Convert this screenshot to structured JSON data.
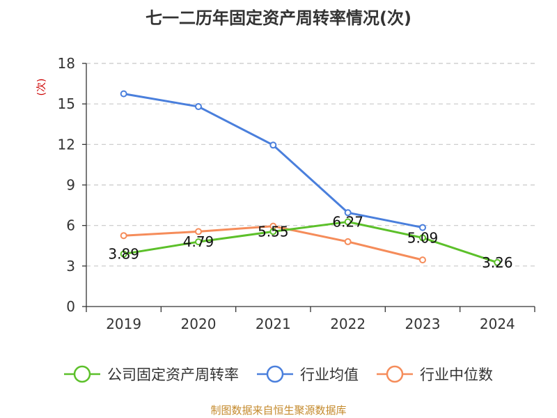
{
  "chart_data": {
    "type": "line",
    "title": "七一二历年固定资产周转率情况(次)",
    "ylabel": "(次)",
    "xlabel": "",
    "categories": [
      "2019",
      "2020",
      "2021",
      "2022",
      "2023",
      "2024"
    ],
    "ylim": [
      0,
      18
    ],
    "yticks": [
      0,
      3,
      6,
      9,
      12,
      15,
      18
    ],
    "grid": true,
    "legend_position": "bottom",
    "series": [
      {
        "name": "公司固定资产周转率",
        "color": "#5cc02a",
        "values": [
          3.89,
          4.79,
          5.55,
          6.27,
          5.09,
          3.26
        ],
        "labels": [
          "3.89",
          "4.79",
          "5.55",
          "6.27",
          "5.09",
          "3.26"
        ]
      },
      {
        "name": "行业均值",
        "color": "#4a7fdc",
        "values": [
          15.75,
          14.8,
          11.95,
          6.95,
          5.85,
          null
        ]
      },
      {
        "name": "行业中位数",
        "color": "#f58c5a",
        "values": [
          5.25,
          5.55,
          5.95,
          4.8,
          3.45,
          null
        ]
      }
    ],
    "source": "制图数据来自恒生聚源数据库"
  }
}
